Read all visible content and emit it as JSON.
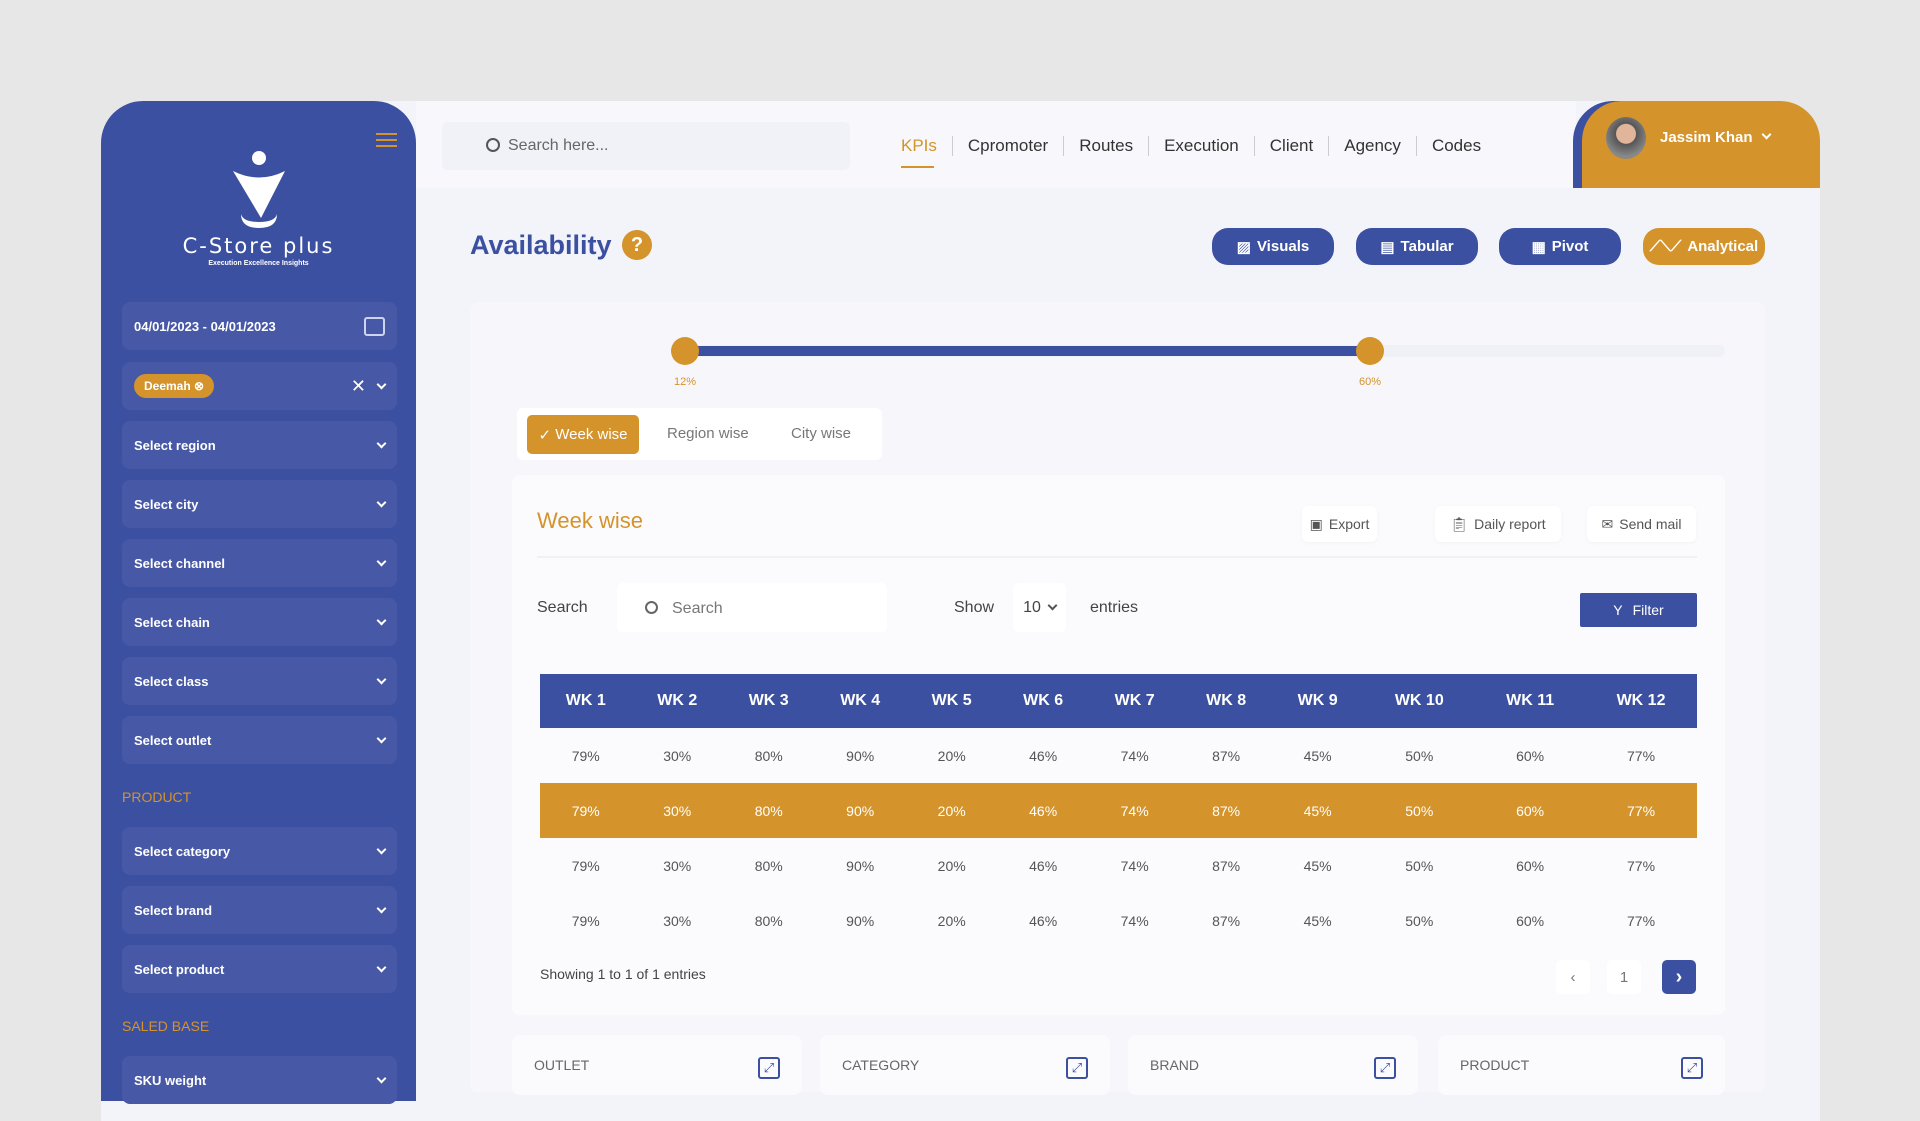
{
  "brand": {
    "name": "C-Store plus",
    "tagline": "Execution Excellence Insights"
  },
  "sidebar": {
    "date_range": "04/01/2023 - 04/01/2023",
    "selected_tag": "Deemah",
    "filters": [
      "Select region",
      "Select city",
      "Select channel",
      "Select chain",
      "Select class",
      "Select outlet"
    ],
    "product_section": "PRODUCT",
    "product_filters": [
      "Select category",
      "Select brand",
      "Select product"
    ],
    "saled_section": "SALED BASE",
    "saled_filters": [
      "SKU weight"
    ]
  },
  "header": {
    "search_placeholder": "Search here...",
    "nav": [
      "KPIs",
      "Cpromoter",
      "Routes",
      "Execution",
      "Client",
      "Agency",
      "Codes"
    ],
    "active_nav": "KPIs",
    "user": "Jassim Khan"
  },
  "page": {
    "title": "Availability",
    "views": [
      "Visuals",
      "Tabular",
      "Pivot",
      "Analytical"
    ],
    "active_view": "Analytical"
  },
  "slider": {
    "min_label": "12%",
    "max_label": "60%",
    "low": 12,
    "high": 60
  },
  "tabs": {
    "items": [
      "Week wise",
      "Region wise",
      "City wise"
    ],
    "active": "Week wise"
  },
  "card": {
    "title": "Week wise",
    "export": "Export",
    "daily_report": "Daily report",
    "send_mail": "Send mail",
    "search_label": "Search",
    "search_placeholder": "Search",
    "show": "Show",
    "entries_value": "10",
    "entries": "entries",
    "filter": "Filter",
    "showing": "Showing 1 to 1 of 1 entries",
    "page": "1"
  },
  "table": {
    "headers": [
      "WK 1",
      "WK 2",
      "WK 3",
      "WK 4",
      "WK 5",
      "WK 6",
      "WK 7",
      "WK 8",
      "WK 9",
      "WK 10",
      "WK 11",
      "WK 12"
    ],
    "rows": [
      [
        "79%",
        "30%",
        "80%",
        "90%",
        "20%",
        "46%",
        "74%",
        "87%",
        "45%",
        "50%",
        "60%",
        "77%"
      ],
      [
        "79%",
        "30%",
        "80%",
        "90%",
        "20%",
        "46%",
        "74%",
        "87%",
        "45%",
        "50%",
        "60%",
        "77%"
      ],
      [
        "79%",
        "30%",
        "80%",
        "90%",
        "20%",
        "46%",
        "74%",
        "87%",
        "45%",
        "50%",
        "60%",
        "77%"
      ],
      [
        "79%",
        "30%",
        "80%",
        "90%",
        "20%",
        "46%",
        "74%",
        "87%",
        "45%",
        "50%",
        "60%",
        "77%"
      ]
    ],
    "highlighted_row": 1
  },
  "bottom_cards": [
    "OUTLET",
    "CATEGORY",
    "BRAND",
    "PRODUCT"
  ],
  "colors": {
    "primary": "#3c50a1",
    "accent": "#d4932b"
  }
}
